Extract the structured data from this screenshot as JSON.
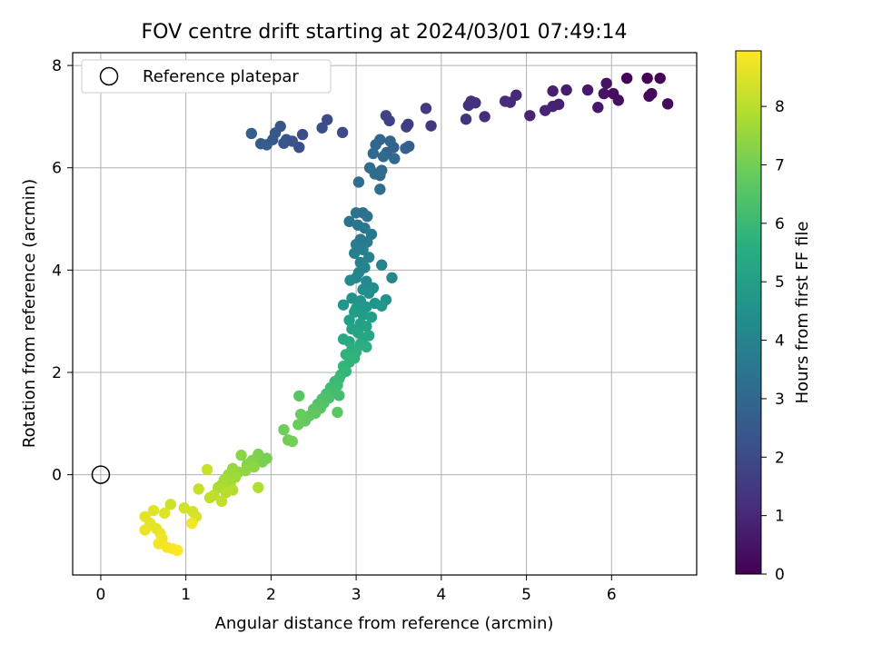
{
  "chart_data": {
    "type": "scatter",
    "title": "FOV centre drift starting at 2024/03/01 07:49:14",
    "xlabel": "Angular distance from reference (arcmin)",
    "ylabel": "Rotation from reference (arcmin)",
    "xlim": [
      -0.33,
      7.0
    ],
    "ylim": [
      -1.96,
      8.25
    ],
    "xticks": [
      0,
      1,
      2,
      3,
      4,
      5,
      6
    ],
    "yticks": [
      0,
      2,
      4,
      6,
      8
    ],
    "grid": true,
    "legend": {
      "position": "top-left",
      "entries": [
        "Reference platepar"
      ]
    },
    "reference_point": {
      "x": 0,
      "y": 0,
      "label": "Reference platepar"
    },
    "colorbar": {
      "label": "Hours from first FF file",
      "colormap": "viridis",
      "range": [
        0,
        8.95
      ],
      "ticks": [
        0,
        1,
        2,
        3,
        4,
        5,
        6,
        7,
        8
      ]
    },
    "series": [
      {
        "points": [
          [
            6.42,
            7.75,
            0.02
          ],
          [
            6.57,
            7.75,
            0.05
          ],
          [
            6.18,
            7.75,
            0.1
          ],
          [
            6.47,
            7.45,
            0.15
          ],
          [
            6.44,
            7.4,
            0.2
          ],
          [
            6.66,
            7.25,
            0.25
          ],
          [
            6.02,
            7.45,
            0.3
          ],
          [
            6.08,
            7.32,
            0.35
          ],
          [
            5.94,
            7.65,
            0.42
          ],
          [
            5.91,
            7.45,
            0.5
          ],
          [
            5.84,
            7.18,
            0.55
          ],
          [
            5.72,
            7.52,
            0.62
          ],
          [
            5.47,
            7.52,
            0.7
          ],
          [
            5.31,
            7.5,
            0.75
          ],
          [
            5.38,
            7.24,
            0.8
          ],
          [
            5.31,
            7.2,
            0.85
          ],
          [
            5.22,
            7.12,
            0.9
          ],
          [
            5.04,
            7.02,
            0.95
          ],
          [
            4.88,
            7.42,
            1.0
          ],
          [
            4.81,
            7.28,
            1.05
          ],
          [
            4.75,
            7.3,
            1.1
          ],
          [
            4.51,
            7.0,
            1.15
          ],
          [
            4.4,
            7.27,
            1.2
          ],
          [
            4.35,
            7.3,
            1.25
          ],
          [
            4.32,
            7.22,
            1.3
          ],
          [
            4.29,
            6.95,
            1.35
          ],
          [
            3.88,
            6.82,
            1.45
          ],
          [
            3.82,
            7.16,
            1.5
          ],
          [
            3.61,
            6.85,
            1.55
          ],
          [
            3.59,
            6.8,
            1.6
          ],
          [
            3.39,
            6.92,
            1.7
          ],
          [
            3.35,
            7.02,
            1.75
          ],
          [
            2.84,
            6.69,
            2.0
          ],
          [
            2.66,
            6.94,
            2.05
          ],
          [
            2.6,
            6.78,
            2.1
          ],
          [
            2.37,
            6.65,
            2.15
          ],
          [
            2.33,
            6.4,
            2.2
          ],
          [
            2.25,
            6.52,
            2.25
          ],
          [
            2.18,
            6.55,
            2.3
          ],
          [
            2.15,
            6.48,
            2.35
          ],
          [
            2.11,
            6.81,
            2.4
          ],
          [
            2.05,
            6.68,
            2.45
          ],
          [
            2.02,
            6.55,
            2.5
          ],
          [
            1.95,
            6.45,
            2.55
          ],
          [
            1.88,
            6.47,
            2.6
          ],
          [
            1.77,
            6.67,
            2.65
          ],
          [
            3.62,
            6.42,
            2.7
          ],
          [
            3.58,
            6.38,
            2.75
          ],
          [
            3.44,
            6.4,
            2.8
          ],
          [
            3.4,
            6.52,
            2.85
          ],
          [
            3.36,
            6.3,
            2.9
          ],
          [
            3.28,
            6.55,
            2.92
          ],
          [
            3.23,
            6.45,
            2.95
          ],
          [
            3.2,
            6.28,
            2.98
          ],
          [
            3.45,
            6.18,
            3.0
          ],
          [
            3.32,
            6.22,
            3.05
          ],
          [
            3.3,
            5.95,
            3.08
          ],
          [
            3.28,
            5.85,
            3.1
          ],
          [
            3.22,
            5.88,
            3.12
          ],
          [
            3.16,
            6.0,
            3.15
          ],
          [
            3.03,
            5.72,
            3.2
          ],
          [
            3.28,
            5.58,
            3.25
          ],
          [
            3.08,
            5.12,
            3.3
          ],
          [
            3.13,
            5.05,
            3.35
          ],
          [
            3.0,
            5.12,
            3.4
          ],
          [
            2.92,
            4.95,
            3.45
          ],
          [
            3.02,
            4.88,
            3.5
          ],
          [
            3.1,
            4.82,
            3.55
          ],
          [
            3.18,
            4.7,
            3.6
          ],
          [
            3.05,
            4.6,
            3.65
          ],
          [
            3.13,
            4.55,
            3.7
          ],
          [
            3.0,
            4.5,
            3.75
          ],
          [
            3.08,
            4.4,
            3.8
          ],
          [
            2.98,
            4.33,
            3.85
          ],
          [
            3.15,
            4.25,
            3.9
          ],
          [
            3.05,
            4.15,
            3.95
          ],
          [
            3.3,
            4.1,
            4.0
          ],
          [
            3.1,
            4.05,
            4.05
          ],
          [
            3.03,
            3.95,
            4.1
          ],
          [
            3.0,
            3.85,
            4.15
          ],
          [
            3.42,
            3.85,
            4.2
          ],
          [
            3.12,
            3.78,
            4.25
          ],
          [
            2.93,
            3.8,
            4.3
          ],
          [
            3.2,
            3.65,
            4.35
          ],
          [
            3.08,
            3.62,
            4.4
          ],
          [
            3.15,
            3.55,
            4.45
          ],
          [
            2.95,
            3.45,
            4.5
          ],
          [
            3.35,
            3.42,
            4.55
          ],
          [
            3.05,
            3.4,
            4.6
          ],
          [
            3.22,
            3.35,
            4.65
          ],
          [
            2.85,
            3.32,
            4.7
          ],
          [
            3.12,
            3.28,
            4.75
          ],
          [
            3.3,
            3.3,
            4.8
          ],
          [
            3.0,
            3.25,
            4.85
          ],
          [
            2.98,
            3.18,
            4.9
          ],
          [
            3.08,
            3.12,
            4.95
          ],
          [
            3.18,
            3.08,
            5.0
          ],
          [
            2.92,
            3.02,
            5.05
          ],
          [
            3.05,
            2.95,
            5.1
          ],
          [
            3.12,
            2.9,
            5.15
          ],
          [
            2.95,
            2.85,
            5.2
          ],
          [
            3.02,
            2.78,
            5.25
          ],
          [
            3.15,
            2.72,
            5.3
          ],
          [
            3.08,
            2.68,
            5.35
          ],
          [
            2.85,
            2.65,
            5.4
          ],
          [
            2.92,
            2.6,
            5.45
          ],
          [
            3.05,
            2.55,
            5.5
          ],
          [
            3.12,
            2.5,
            5.55
          ],
          [
            2.95,
            2.45,
            5.6
          ],
          [
            3.0,
            2.4,
            5.65
          ],
          [
            2.88,
            2.35,
            5.7
          ],
          [
            2.98,
            2.28,
            5.75
          ],
          [
            2.92,
            2.2,
            5.8
          ],
          [
            2.85,
            2.12,
            5.85
          ],
          [
            2.88,
            2.02,
            5.9
          ],
          [
            2.82,
            1.95,
            5.95
          ],
          [
            2.8,
            1.88,
            6.0
          ],
          [
            2.75,
            1.82,
            6.05
          ],
          [
            2.78,
            1.75,
            6.1
          ],
          [
            2.7,
            1.7,
            6.15
          ],
          [
            2.72,
            1.62,
            6.2
          ],
          [
            2.8,
            1.55,
            6.25
          ],
          [
            2.65,
            1.58,
            6.3
          ],
          [
            2.68,
            1.5,
            6.35
          ],
          [
            2.6,
            1.48,
            6.4
          ],
          [
            2.62,
            1.4,
            6.45
          ],
          [
            2.55,
            1.38,
            6.5
          ],
          [
            2.58,
            1.3,
            6.55
          ],
          [
            2.5,
            1.28,
            6.6
          ],
          [
            2.33,
            1.54,
            6.62
          ],
          [
            2.78,
            1.22,
            6.65
          ],
          [
            2.52,
            1.2,
            6.7
          ],
          [
            2.45,
            1.15,
            6.75
          ],
          [
            2.4,
            1.05,
            6.8
          ],
          [
            2.35,
            1.18,
            6.85
          ],
          [
            2.32,
            0.98,
            6.9
          ],
          [
            2.15,
            0.88,
            6.95
          ],
          [
            2.2,
            0.68,
            7.0
          ],
          [
            2.25,
            0.65,
            7.05
          ],
          [
            1.95,
            0.32,
            7.1
          ],
          [
            1.9,
            0.25,
            7.15
          ],
          [
            1.85,
            0.4,
            7.2
          ],
          [
            1.78,
            0.28,
            7.25
          ],
          [
            1.72,
            0.2,
            7.3
          ],
          [
            1.65,
            0.38,
            7.35
          ],
          [
            1.8,
            0.15,
            7.4
          ],
          [
            1.7,
            0.08,
            7.45
          ],
          [
            1.62,
            0.05,
            7.5
          ],
          [
            1.55,
            0.12,
            7.55
          ],
          [
            1.5,
            0.0,
            7.6
          ],
          [
            1.58,
            -0.05,
            7.65
          ],
          [
            1.45,
            -0.1,
            7.7
          ],
          [
            1.52,
            -0.18,
            7.75
          ],
          [
            1.42,
            -0.2,
            7.8
          ],
          [
            1.38,
            -0.25,
            7.85
          ],
          [
            1.85,
            -0.25,
            7.9
          ],
          [
            1.55,
            -0.3,
            7.95
          ],
          [
            1.47,
            -0.35,
            8.0
          ],
          [
            1.33,
            -0.4,
            8.05
          ],
          [
            1.28,
            -0.45,
            8.1
          ],
          [
            1.42,
            -0.52,
            8.15
          ],
          [
            1.15,
            -0.28,
            8.2
          ],
          [
            1.25,
            0.1,
            8.25
          ],
          [
            0.82,
            -0.58,
            8.3
          ],
          [
            0.98,
            -0.65,
            8.35
          ],
          [
            1.08,
            -0.72,
            8.4
          ],
          [
            1.12,
            -0.82,
            8.45
          ],
          [
            0.75,
            -0.75,
            8.5
          ],
          [
            0.62,
            -0.7,
            8.55
          ],
          [
            0.52,
            -0.82,
            8.6
          ],
          [
            0.58,
            -0.95,
            8.62
          ],
          [
            0.65,
            -1.05,
            8.65
          ],
          [
            0.7,
            -1.15,
            8.7
          ],
          [
            0.52,
            -1.08,
            8.72
          ],
          [
            0.72,
            -1.25,
            8.75
          ],
          [
            0.68,
            -1.35,
            8.8
          ],
          [
            1.07,
            -0.95,
            8.82
          ],
          [
            0.78,
            -1.42,
            8.85
          ],
          [
            0.85,
            -1.45,
            8.9
          ],
          [
            0.9,
            -1.48,
            8.93
          ]
        ]
      }
    ]
  }
}
